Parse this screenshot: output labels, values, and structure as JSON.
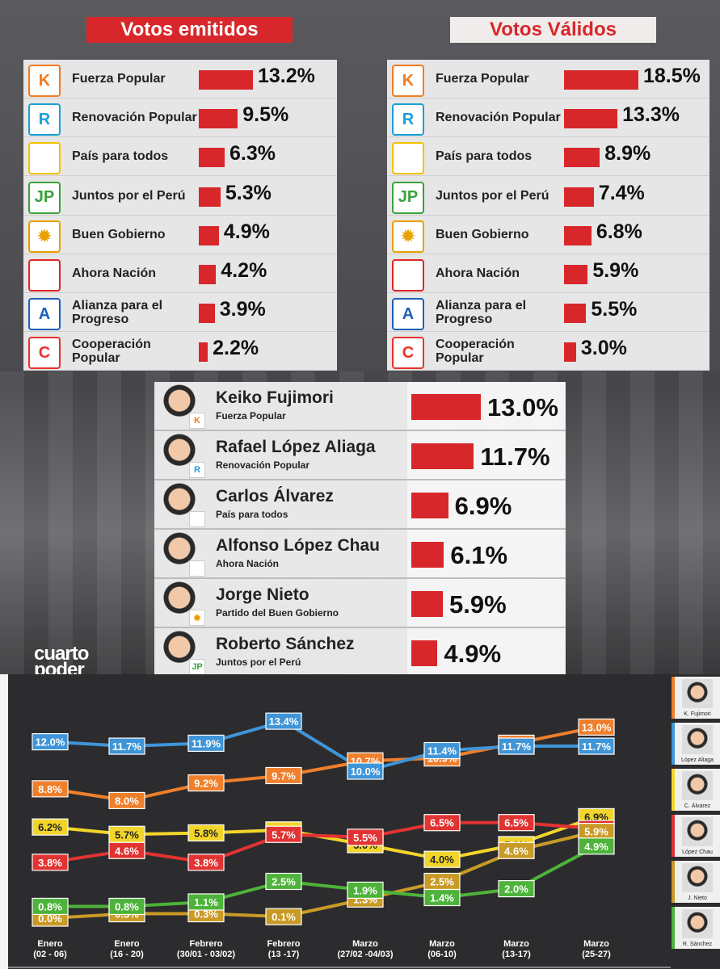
{
  "headers": {
    "emitidos": "Votos emitidos",
    "validos": "Votos Válidos"
  },
  "parties": [
    {
      "logo": "K",
      "logo_color": "#f27a20",
      "name": "Fuerza Popular"
    },
    {
      "logo": "R",
      "logo_color": "#1aa0d8",
      "name": "Renovación Popular"
    },
    {
      "logo": "",
      "logo_color": "#f2c200",
      "name": "País para todos"
    },
    {
      "logo": "JP",
      "logo_color": "#3aa23a",
      "name": "Juntos por el Perú"
    },
    {
      "logo": "✹",
      "logo_color": "#e8a000",
      "name": "Buen Gobierno"
    },
    {
      "logo": "",
      "logo_color": "#e02626",
      "name": "Ahora Nación"
    },
    {
      "logo": "A",
      "logo_color": "#1f5fb8",
      "name": "Alianza para el Progreso"
    },
    {
      "logo": "C",
      "logo_color": "#e8322b",
      "name": "Cooperación Popular"
    }
  ],
  "chart_data": [
    {
      "type": "bar",
      "title": "Votos emitidos",
      "categories": [
        "Fuerza Popular",
        "Renovación Popular",
        "País para todos",
        "Juntos por el Perú",
        "Buen Gobierno",
        "Ahora Nación",
        "Alianza para el Progreso",
        "Cooperación Popular"
      ],
      "values": [
        13.2,
        9.5,
        6.3,
        5.3,
        4.9,
        4.2,
        3.9,
        2.2
      ],
      "labels": [
        "13.2%",
        "9.5%",
        "6.3%",
        "5.3%",
        "4.9%",
        "4.2%",
        "3.9%",
        "2.2%"
      ]
    },
    {
      "type": "bar",
      "title": "Votos Válidos",
      "categories": [
        "Fuerza Popular",
        "Renovación Popular",
        "País para todos",
        "Juntos por el Perú",
        "Buen Gobierno",
        "Ahora Nación",
        "Alianza para el Progreso",
        "Cooperación Popular"
      ],
      "values": [
        18.5,
        13.3,
        8.9,
        7.4,
        6.8,
        5.9,
        5.5,
        3.0
      ],
      "labels": [
        "18.5%",
        "13.3%",
        "8.9%",
        "7.4%",
        "6.8%",
        "5.9%",
        "5.5%",
        "3.0%"
      ]
    },
    {
      "type": "bar",
      "categories": [
        "Keiko Fujimori",
        "Rafael López Aliaga",
        "Carlos Álvarez",
        "Alfonso López Chau",
        "Jorge Nieto",
        "Roberto Sánchez"
      ],
      "subtitles": [
        "Fuerza Popular",
        "Renovación Popular",
        "País para todos",
        "Ahora Nación",
        "Partido del Buen Gobierno",
        "Juntos por el  Perú"
      ],
      "badges": [
        "K",
        "R",
        "",
        "",
        "✹",
        "JP"
      ],
      "values": [
        13.0,
        11.7,
        6.9,
        6.1,
        5.9,
        4.9
      ],
      "labels": [
        "13.0%",
        "11.7%",
        "6.9%",
        "6.1%",
        "5.9%",
        "4.9%"
      ]
    },
    {
      "type": "line",
      "x": [
        "Enero\n(02 - 06)",
        "Enero\n(16 - 20)",
        "Febrero\n(30/01 - 03/02)",
        "Febrero\n(13 -17)",
        "Marzo\n(27/02 -04/03)",
        "Marzo\n(06-10)",
        "Marzo\n(13-17)",
        "Marzo\n(25-27)"
      ],
      "series": [
        {
          "name": "K. Fujimori",
          "color": "#ef7f2b",
          "values": [
            8.8,
            8.0,
            9.2,
            9.7,
            10.7,
            10.9,
            11.9,
            13.0
          ]
        },
        {
          "name": "López Aliaga",
          "color": "#3f95d8",
          "values": [
            12.0,
            11.7,
            11.9,
            13.4,
            10.0,
            11.4,
            11.7,
            11.7
          ]
        },
        {
          "name": "C. Álvarez",
          "color": "#f2d52a",
          "values": [
            6.2,
            5.7,
            5.8,
            6.0,
            5.0,
            4.0,
            5.0,
            6.9
          ]
        },
        {
          "name": "López Chau",
          "color": "#e23333",
          "values": [
            3.8,
            4.6,
            3.8,
            5.7,
            5.5,
            6.5,
            6.5,
            6.1
          ]
        },
        {
          "name": "J. Nieto",
          "color": "#c99a26",
          "values": [
            0.0,
            0.3,
            0.3,
            0.1,
            1.3,
            2.5,
            4.6,
            5.9
          ]
        },
        {
          "name": "R. Sánchez",
          "color": "#4db33a",
          "values": [
            0.8,
            0.8,
            1.1,
            2.5,
            1.9,
            1.4,
            2.0,
            4.9
          ]
        }
      ]
    }
  ],
  "brand": "cuarto poder"
}
